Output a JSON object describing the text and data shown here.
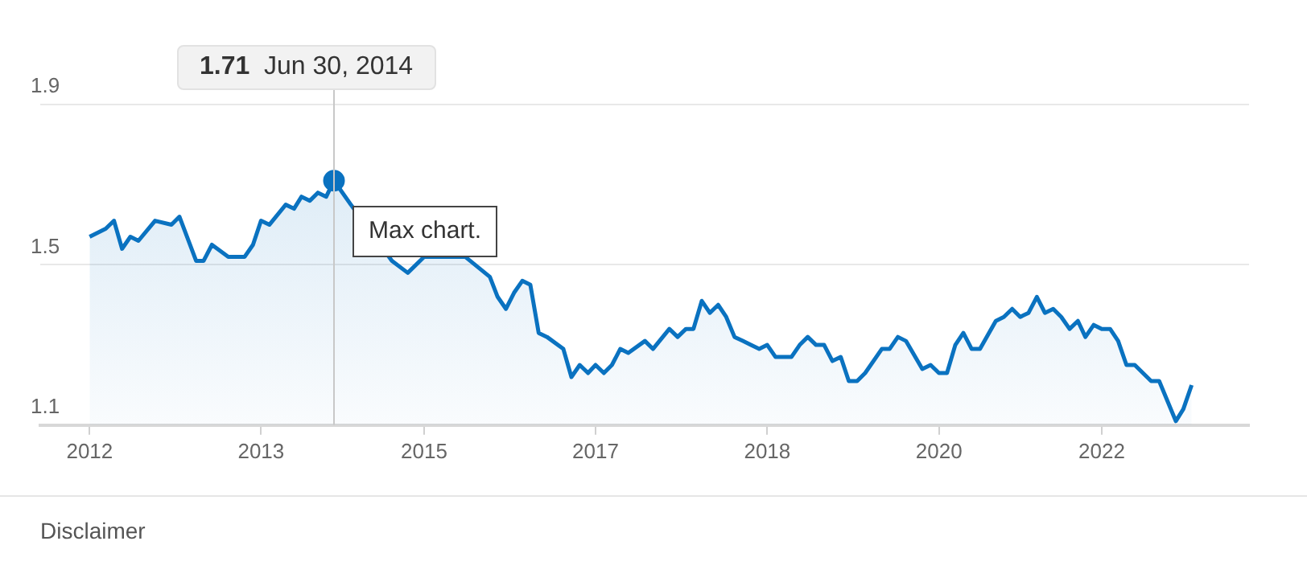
{
  "chart_data": {
    "type": "area",
    "x": [
      "2012-01",
      "2012-03",
      "2012-04",
      "2012-05",
      "2012-06",
      "2012-07",
      "2012-09",
      "2012-11",
      "2012-12",
      "2013-02",
      "2013-03",
      "2013-04",
      "2013-06",
      "2013-08",
      "2013-09",
      "2013-10",
      "2013-11",
      "2014-01",
      "2014-02",
      "2014-03",
      "2014-04",
      "2014-05",
      "2014-06",
      "2014-06-30",
      "2014-09",
      "2015-02",
      "2015-03",
      "2015-04",
      "2015-06",
      "2015-11",
      "2015-12",
      "2016-02",
      "2016-03",
      "2016-04",
      "2016-05",
      "2016-06",
      "2016-07",
      "2016-08",
      "2016-09",
      "2016-11",
      "2016-12",
      "2017-01",
      "2017-02",
      "2017-03",
      "2017-04",
      "2017-05",
      "2017-06",
      "2017-07",
      "2017-09",
      "2017-10",
      "2017-12",
      "2018-01",
      "2018-02",
      "2018-03",
      "2018-04",
      "2018-05",
      "2018-06",
      "2018-07",
      "2018-08",
      "2018-09",
      "2018-10",
      "2018-11",
      "2018-12",
      "2019-01",
      "2019-03",
      "2019-04",
      "2019-05",
      "2019-06",
      "2019-07",
      "2019-08",
      "2019-09",
      "2019-10",
      "2019-11",
      "2019-12",
      "2020-02",
      "2020-03",
      "2020-04",
      "2020-05",
      "2020-07",
      "2020-08",
      "2020-09",
      "2020-10",
      "2020-11",
      "2020-12",
      "2021-01",
      "2021-02",
      "2021-04",
      "2021-05",
      "2021-06",
      "2021-07",
      "2021-08",
      "2021-09",
      "2021-10",
      "2021-11",
      "2021-12",
      "2022-01",
      "2022-02",
      "2022-03",
      "2022-04",
      "2022-05",
      "2022-06",
      "2022-07",
      "2022-08",
      "2022-09",
      "2022-11",
      "2022-12",
      "2023-02",
      "2023-03",
      "2023-04"
    ],
    "series": [
      {
        "color": "#0a72c0",
        "values": [
          1.57,
          1.59,
          1.61,
          1.54,
          1.57,
          1.56,
          1.61,
          1.6,
          1.62,
          1.51,
          1.51,
          1.55,
          1.52,
          1.52,
          1.55,
          1.61,
          1.6,
          1.65,
          1.64,
          1.67,
          1.66,
          1.68,
          1.67,
          1.71,
          1.65,
          1.51,
          null,
          1.48,
          1.52,
          1.52,
          null,
          1.47,
          1.42,
          1.39,
          1.43,
          1.46,
          1.45,
          1.33,
          1.32,
          1.29,
          1.22,
          1.25,
          1.23,
          1.25,
          1.23,
          1.25,
          1.29,
          1.28,
          1.31,
          1.29,
          1.34,
          1.32,
          1.34,
          1.34,
          1.41,
          1.38,
          1.4,
          1.37,
          1.32,
          1.31,
          1.3,
          1.29,
          1.3,
          1.27,
          1.27,
          1.3,
          1.32,
          1.3,
          1.3,
          1.26,
          1.27,
          1.21,
          1.21,
          1.23,
          1.29,
          1.29,
          1.32,
          1.31,
          1.24,
          1.25,
          1.23,
          1.23,
          1.3,
          1.33,
          1.29,
          1.29,
          1.36,
          1.37,
          1.39,
          1.37,
          1.38,
          1.42,
          1.38,
          1.39,
          1.37,
          1.34,
          1.36,
          1.32,
          1.35,
          1.34,
          1.34,
          1.31,
          1.25,
          1.25,
          1.21,
          1.21,
          1.11,
          1.14,
          1.2
        ]
      }
    ],
    "xlim": [
      "2011-07",
      "2023-11"
    ],
    "xticks": [
      {
        "value": "2012-01",
        "label": "2012"
      },
      {
        "value": "2013-10",
        "label": "2013"
      },
      {
        "value": "2015-06",
        "label": "2015"
      },
      {
        "value": "2017-03",
        "label": "2017"
      },
      {
        "value": "2018-12",
        "label": "2018"
      },
      {
        "value": "2020-09",
        "label": "2020"
      },
      {
        "value": "2022-05",
        "label": "2022"
      }
    ],
    "ylim": [
      1.1,
      1.9
    ],
    "yticks": [
      1.1,
      1.5,
      1.9
    ],
    "grid": "y",
    "legend": false,
    "marker": "none",
    "line_style": "solid",
    "ref_lines": [
      {
        "axis": "x",
        "value": "2014-06-30",
        "color": "#c8c8c8"
      }
    ],
    "annotations": [
      "1.71  Jun 30, 2014",
      "Max chart.",
      "Disclaimer"
    ]
  }
}
